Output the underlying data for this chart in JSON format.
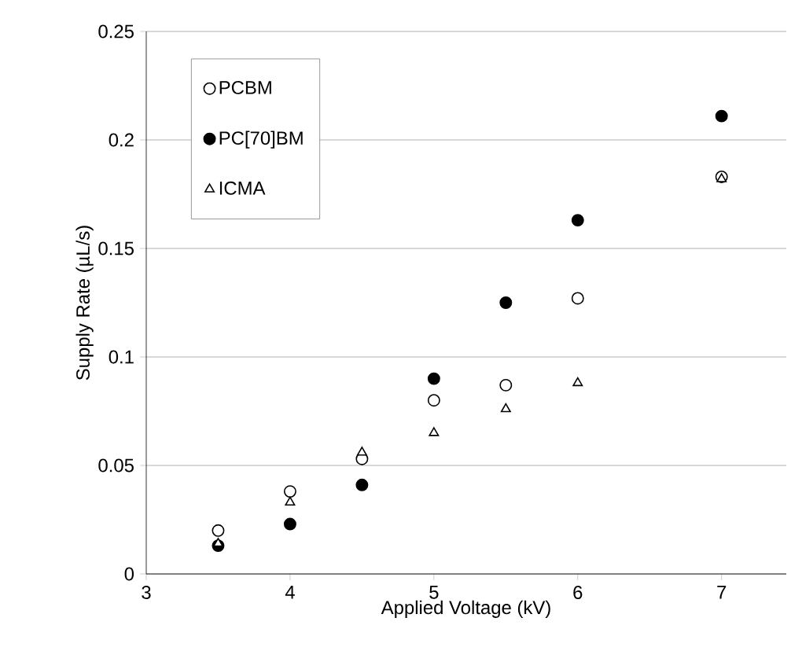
{
  "chart_data": {
    "type": "scatter",
    "xlabel": "Applied Voltage (kV)",
    "ylabel": "Supply Rate (µL/s)",
    "xlim": [
      3,
      7.45
    ],
    "ylim": [
      0,
      0.25
    ],
    "xticks": [
      3,
      4,
      5,
      6,
      7
    ],
    "yticks": [
      0,
      0.05,
      0.1,
      0.15,
      0.2,
      0.25
    ],
    "grid": "y",
    "legend": "top left",
    "series": [
      {
        "name": "PCBM",
        "color": "#ffffff",
        "marker": "circle",
        "x": [
          3.5,
          4,
          4.5,
          5,
          5.5,
          6,
          7
        ],
        "values": [
          0.02,
          0.038,
          0.053,
          0.08,
          0.087,
          0.127,
          0.183
        ]
      },
      {
        "name": "PC[70]BM",
        "color": "#000000",
        "marker": "circle",
        "x": [
          3.5,
          4,
          4.5,
          5,
          5.5,
          6,
          7
        ],
        "values": [
          0.013,
          0.023,
          0.041,
          0.09,
          0.125,
          0.163,
          0.211
        ]
      },
      {
        "name": "ICMA",
        "color": "#ffffff",
        "marker": "triangle",
        "x": [
          3.5,
          4,
          4.5,
          5,
          5.5,
          6,
          7
        ],
        "values": [
          0.014,
          0.033,
          0.056,
          0.065,
          0.076,
          0.088,
          0.182
        ]
      }
    ]
  }
}
